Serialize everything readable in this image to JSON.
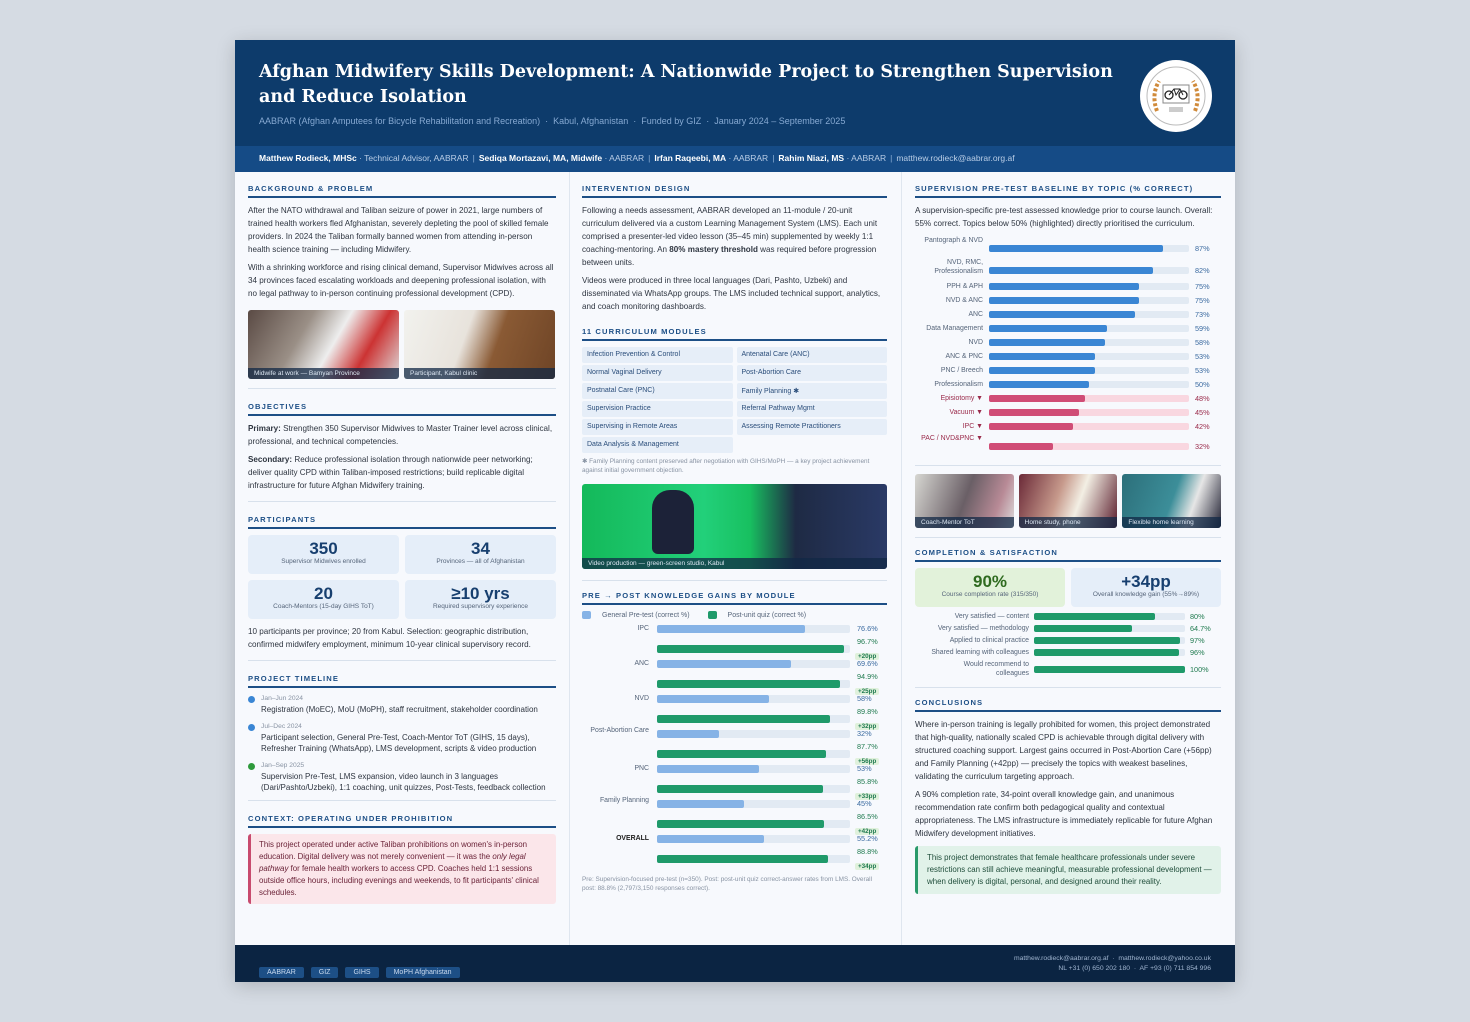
{
  "header": {
    "title": "Afghan Midwifery Skills Development: A Nationwide Project to Strengthen Supervision and Reduce Isolation",
    "subtitle": "AABRAR (Afghan Amputees for Bicycle Rehabilitation and Recreation)  ·  Kabul, Afghanistan  ·  Funded by GIZ  ·  January 2024 – September 2025",
    "logo_text": "AABRAR"
  },
  "authors": [
    {
      "name": "Matthew Rodieck, MHSc",
      "role": " · Technical Advisor, AABRAR"
    },
    {
      "name": "Sediqa Mortazavi, MA, Midwife",
      "role": " · AABRAR"
    },
    {
      "name": "Irfan Raqeebi, MA",
      "role": " · AABRAR"
    },
    {
      "name": "Rahim Niazi, MS",
      "role": " · AABRAR"
    }
  ],
  "author_email": "matthew.rodieck@aabrar.org.af",
  "background": {
    "heading": "Background & Problem",
    "p1": "After the NATO withdrawal and Taliban seizure of power in 2021, large numbers of trained health workers fled Afghanistan, severely depleting the pool of skilled female providers. In 2024 the Taliban formally banned women from attending in-person health science training — including Midwifery.",
    "p2": "With a shrinking workforce and rising clinical demand, Supervisor Midwives across all 34 provinces faced escalating workloads and deepening professional isolation, with no legal pathway to in-person continuing professional development (CPD).",
    "photos": [
      "Midwife at work — Bamyan Province",
      "Participant, Kabul clinic"
    ]
  },
  "objectives": {
    "heading": "Objectives",
    "primary_label": "Primary:",
    "primary": " Strengthen 350 Supervisor Midwives to Master Trainer level across clinical, professional, and technical competencies.",
    "secondary_label": "Secondary:",
    "secondary": " Reduce professional isolation through nationwide peer networking; deliver quality CPD within Taliban-imposed restrictions; build replicable digital infrastructure for future Afghan Midwifery training."
  },
  "participants": {
    "heading": "Participants",
    "stats": [
      {
        "value": "350",
        "label": "Supervisor Midwives enrolled"
      },
      {
        "value": "34",
        "label": "Provinces — all of Afghanistan"
      },
      {
        "value": "20",
        "label": "Coach-Mentors (15-day GIHS ToT)"
      },
      {
        "value": "≥10 yrs",
        "label": "Required supervisory experience"
      }
    ],
    "note": "10 participants per province; 20 from Kabul. Selection: geographic distribution, confirmed midwifery employment, minimum 10-year clinical supervisory record."
  },
  "timeline": {
    "heading": "Project Timeline",
    "items": [
      {
        "date": "Jan–Jun 2024",
        "text": "Registration (MoEC), MoU (MoPH), staff recruitment, stakeholder coordination",
        "color": "#3a86d4"
      },
      {
        "date": "Jul–Dec 2024",
        "text": "Participant selection, General Pre-Test, Coach-Mentor ToT (GIHS, 15 days), Refresher Training (WhatsApp), LMS development, scripts & video production",
        "color": "#3a86d4"
      },
      {
        "date": "Jan–Sep 2025",
        "text": "Supervision Pre-Test, LMS expansion, video launch in 3 languages (Dari/Pashto/Uzbeki), 1:1 coaching, unit quizzes, Post-Tests, feedback collection",
        "color": "#2e9a3c"
      }
    ]
  },
  "context": {
    "heading": "Context: Operating Under Prohibition",
    "t1": "This project operated under active Taliban prohibitions on women's in-person education. Digital delivery was not merely convenient — it was the ",
    "em": "only legal pathway",
    "t2": " for female health workers to access CPD. Coaches held 1:1 sessions outside office hours, including evenings and weekends, to fit participants' clinical schedules."
  },
  "intervention": {
    "heading": "Intervention Design",
    "p1a": "Following a needs assessment, AABRAR developed an 11-module / 20-unit curriculum delivered via a custom Learning Management System (LMS). Each unit comprised a presenter-led video lesson (35–45 min) supplemented by weekly 1:1 coaching-mentoring. An ",
    "p1b": "80% mastery threshold",
    "p1c": " was required before progression between units.",
    "p2": "Videos were produced in three local languages (Dari, Pashto, Uzbeki) and disseminated via WhatsApp groups. The LMS included technical support, analytics, and coach monitoring dashboards."
  },
  "modules": {
    "heading": "11 Curriculum Modules",
    "items": [
      "Infection Prevention & Control",
      "Antenatal Care (ANC)",
      "Normal Vaginal Delivery",
      "Post-Abortion Care",
      "Postnatal Care (PNC)",
      "Family Planning ✱",
      "Supervision Practice",
      "Referral Pathway Mgmt",
      "Supervising in Remote Areas",
      "Assessing Remote Practitioners",
      "Data Analysis & Management"
    ],
    "footnote": "✱ Family Planning content preserved after negotiation with GIHS/MoPH — a key project achievement against initial government objection.",
    "photo": "Video production — green-screen studio, Kabul"
  },
  "chart_data": [
    {
      "type": "bar",
      "title": "Pre → Post Knowledge Gains by Module",
      "categories": [
        "IPC",
        "ANC",
        "NVD",
        "Post-Abortion Care",
        "PNC",
        "Family Planning",
        "OVERALL"
      ],
      "series": [
        {
          "name": "General Pre-test (correct %)",
          "values": [
            76.6,
            69.6,
            58,
            32,
            53,
            45,
            55.2
          ],
          "labels": [
            "76.6%",
            "69.6%",
            "58%",
            "32%",
            "53%",
            "45%",
            "55.2%"
          ],
          "color": "#86b3e6"
        },
        {
          "name": "Post-unit quiz (correct %)",
          "values": [
            96.7,
            94.9,
            89.8,
            87.7,
            85.8,
            86.5,
            88.8
          ],
          "labels": [
            "96.7%",
            "94.9%",
            "89.8%",
            "87.7%",
            "85.8%",
            "86.5%",
            "88.8%"
          ],
          "color": "#1f9a6a"
        }
      ],
      "gains": [
        "+20pp",
        "+25pp",
        "+32pp",
        "+56pp",
        "+33pp",
        "+42pp",
        "+34pp"
      ],
      "xlim": [
        0,
        100
      ],
      "footnote": "Pre: Supervision-focused pre-test (n=350). Post: post-unit quiz correct-answer rates from LMS. Overall post: 88.8% (2,797/3,150 responses correct)."
    },
    {
      "type": "bar",
      "title": "Supervision Pre-Test Baseline by Topic (% correct)",
      "description": "A supervision-specific pre-test assessed knowledge prior to course launch. Overall: 55% correct. Topics below 50% (highlighted) directly prioritised the curriculum.",
      "categories": [
        "Pantograph & NVD",
        "NVD, RMC, Professionalism",
        "PPH & APH",
        "NVD & ANC",
        "ANC",
        "Data Management",
        "NVD",
        "ANC & PNC",
        "PNC / Breech",
        "Professionalism",
        "Episiotomy ▼",
        "Vacuum ▼",
        "IPC ▼",
        "PAC / NVD&PNC ▼"
      ],
      "values": [
        87,
        82,
        75,
        75,
        73,
        59,
        58,
        53,
        53,
        50,
        48,
        45,
        42,
        32
      ],
      "xlim": [
        0,
        100
      ],
      "highlight_below": 50,
      "color": "#3a86d4",
      "highlight_color": "#d04d76"
    }
  ],
  "photos_right": [
    "Coach-Mentor ToT",
    "Home study, phone",
    "Flexible home learning"
  ],
  "completion": {
    "heading": "Completion & Satisfaction",
    "kpis": [
      {
        "value": "90%",
        "label": "Course completion rate (315/350)"
      },
      {
        "value": "+34pp",
        "label": "Overall knowledge gain (55%→89%)"
      }
    ],
    "satisfaction": [
      {
        "label": "Very satisfied — content",
        "value": 80,
        "text": "80%"
      },
      {
        "label": "Very satisfied — methodology",
        "value": 64.7,
        "text": "64.7%"
      },
      {
        "label": "Applied to clinical practice",
        "value": 97,
        "text": "97%"
      },
      {
        "label": "Shared learning with colleagues",
        "value": 96,
        "text": "96%"
      },
      {
        "label": "Would recommend to colleagues",
        "value": 100,
        "text": "100%"
      }
    ]
  },
  "conclusions": {
    "heading": "Conclusions",
    "p1": "Where in-person training is legally prohibited for women, this project demonstrated that high-quality, nationally scaled CPD is achievable through digital delivery with structured coaching support. Largest gains occurred in Post-Abortion Care (+56pp) and Family Planning (+42pp) — precisely the topics with weakest baselines, validating the curriculum targeting approach.",
    "p2": "A 90% completion rate, 34-point overall knowledge gain, and unanimous recommendation rate confirm both pedagogical quality and contextual appropriateness. The LMS infrastructure is immediately replicable for future Afghan Midwifery development initiatives.",
    "callout": "This project demonstrates that female healthcare professionals under severe restrictions can still achieve meaningful, measurable professional development — when delivery is digital, personal, and designed around their reality."
  },
  "footer": {
    "tags": [
      "AABRAR",
      "GIZ",
      "GIHS",
      "MoPH Afghanistan"
    ],
    "emails": "matthew.rodieck@aabrar.org.af  ·  matthew.rodieck@yahoo.co.uk",
    "phones": "NL +31 (0) 650 202 180  ·  AF +93 (0) 711 854 996"
  }
}
